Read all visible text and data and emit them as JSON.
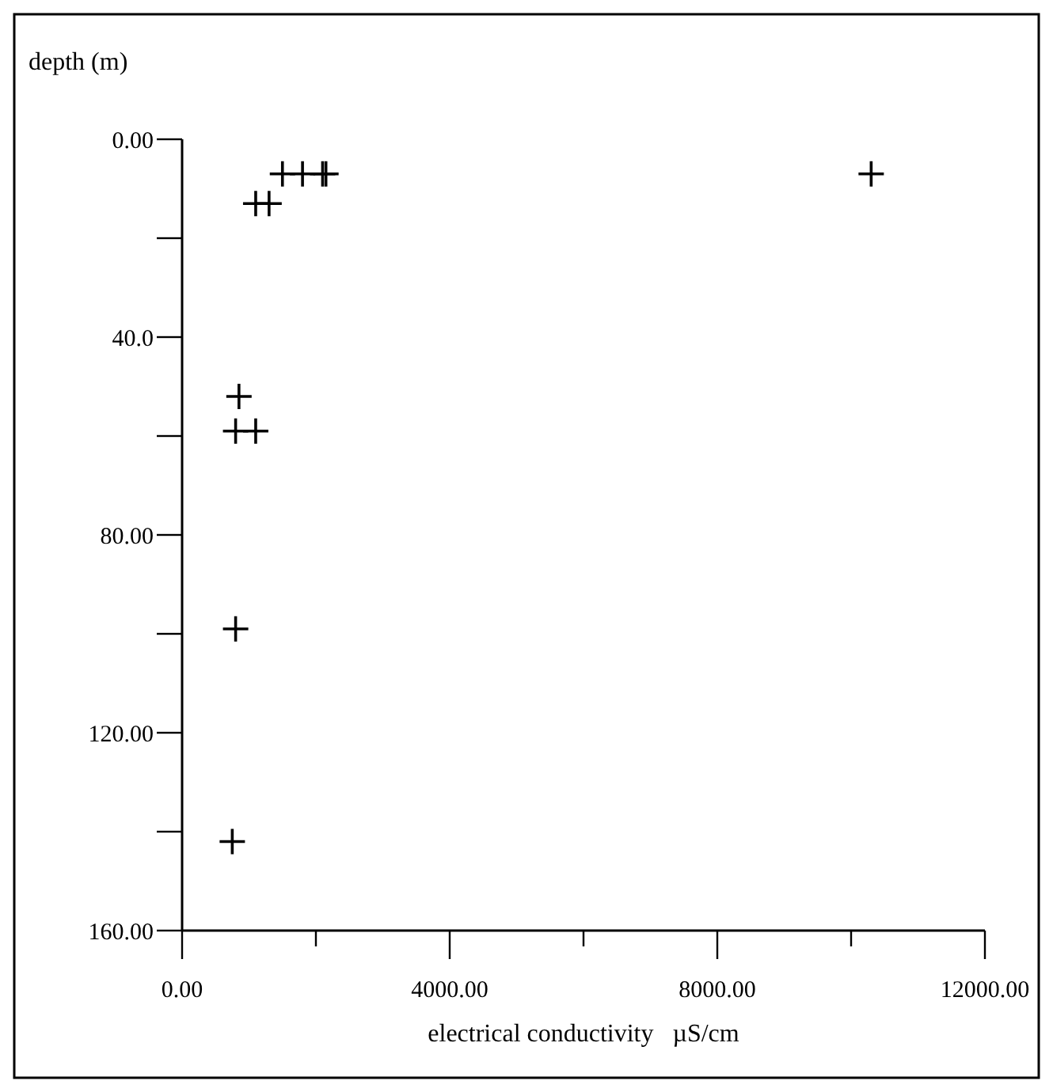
{
  "chart_data": {
    "type": "scatter",
    "xlabel": "electrical conductivity   µS/cm",
    "ylabel": "depth (m)",
    "x": [
      1500,
      1800,
      2100,
      2150,
      10300,
      1100,
      1300,
      850,
      800,
      1100,
      800,
      750
    ],
    "values": [
      7,
      7,
      7,
      7,
      7,
      13,
      13,
      52,
      59,
      59,
      99,
      142
    ],
    "color": "#000000",
    "marker": "cross",
    "grid": false,
    "xlim": [
      0,
      12000
    ],
    "xticks": [
      {
        "value": 0,
        "label": "0.00"
      },
      {
        "value": 2000,
        "label": null
      },
      {
        "value": 4000,
        "label": "4000.00"
      },
      {
        "value": 6000,
        "label": null
      },
      {
        "value": 8000,
        "label": "8000.00"
      },
      {
        "value": 10000,
        "label": null
      },
      {
        "value": 12000,
        "label": "12000.00"
      }
    ],
    "ylim": [
      160,
      0
    ],
    "yticks": [
      {
        "value": 0,
        "label": "0.00"
      },
      {
        "value": 20,
        "label": null
      },
      {
        "value": 40,
        "label": "40.0"
      },
      {
        "value": 60,
        "label": null
      },
      {
        "value": 80,
        "label": "80.00"
      },
      {
        "value": 100,
        "label": null
      },
      {
        "value": 120,
        "label": "120.00"
      },
      {
        "value": 140,
        "label": null
      },
      {
        "value": 160,
        "label": "160.00"
      }
    ]
  }
}
